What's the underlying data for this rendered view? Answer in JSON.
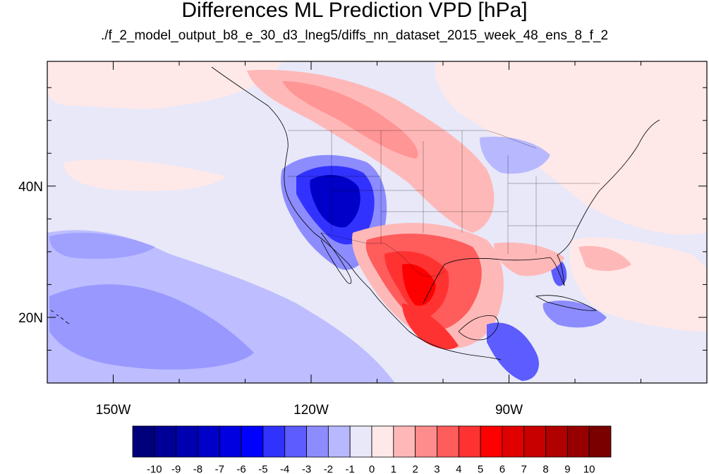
{
  "title": "Differences ML Prediction VPD [hPa]",
  "subtitle": "./f_2_model_output_b8_e_30_d3_lneg5/diffs_nn_dataset_2015_week_48_ens_8_f_2",
  "map": {
    "lon_range": [
      -160,
      -60
    ],
    "lat_range": [
      10,
      59
    ],
    "lon_ticks": [
      {
        "value": -150,
        "label": "150W"
      },
      {
        "value": -120,
        "label": "120W"
      },
      {
        "value": -90,
        "label": "90W"
      }
    ],
    "lat_ticks": [
      {
        "value": 40,
        "label": "40N"
      },
      {
        "value": 20,
        "label": "20N"
      }
    ],
    "background_color": "#e8e8f8"
  },
  "colorbar": {
    "labels": [
      "-10",
      "-9",
      "-8",
      "-7",
      "-6",
      "-5",
      "-4",
      "-3",
      "-2",
      "-1",
      "0",
      "1",
      "2",
      "3",
      "4",
      "5",
      "6",
      "7",
      "8",
      "9",
      "10"
    ],
    "colors": [
      "#00007a",
      "#000096",
      "#0000b0",
      "#0000c8",
      "#0000e0",
      "#0000ff",
      "#3232ff",
      "#5c5cff",
      "#8c8cff",
      "#b8b8ff",
      "#e8e8f8",
      "#ffe8e8",
      "#ffb8b8",
      "#ff8c8c",
      "#ff5c5c",
      "#ff3232",
      "#ff0000",
      "#e00000",
      "#c80000",
      "#b00000",
      "#960000",
      "#7a0000"
    ]
  }
}
